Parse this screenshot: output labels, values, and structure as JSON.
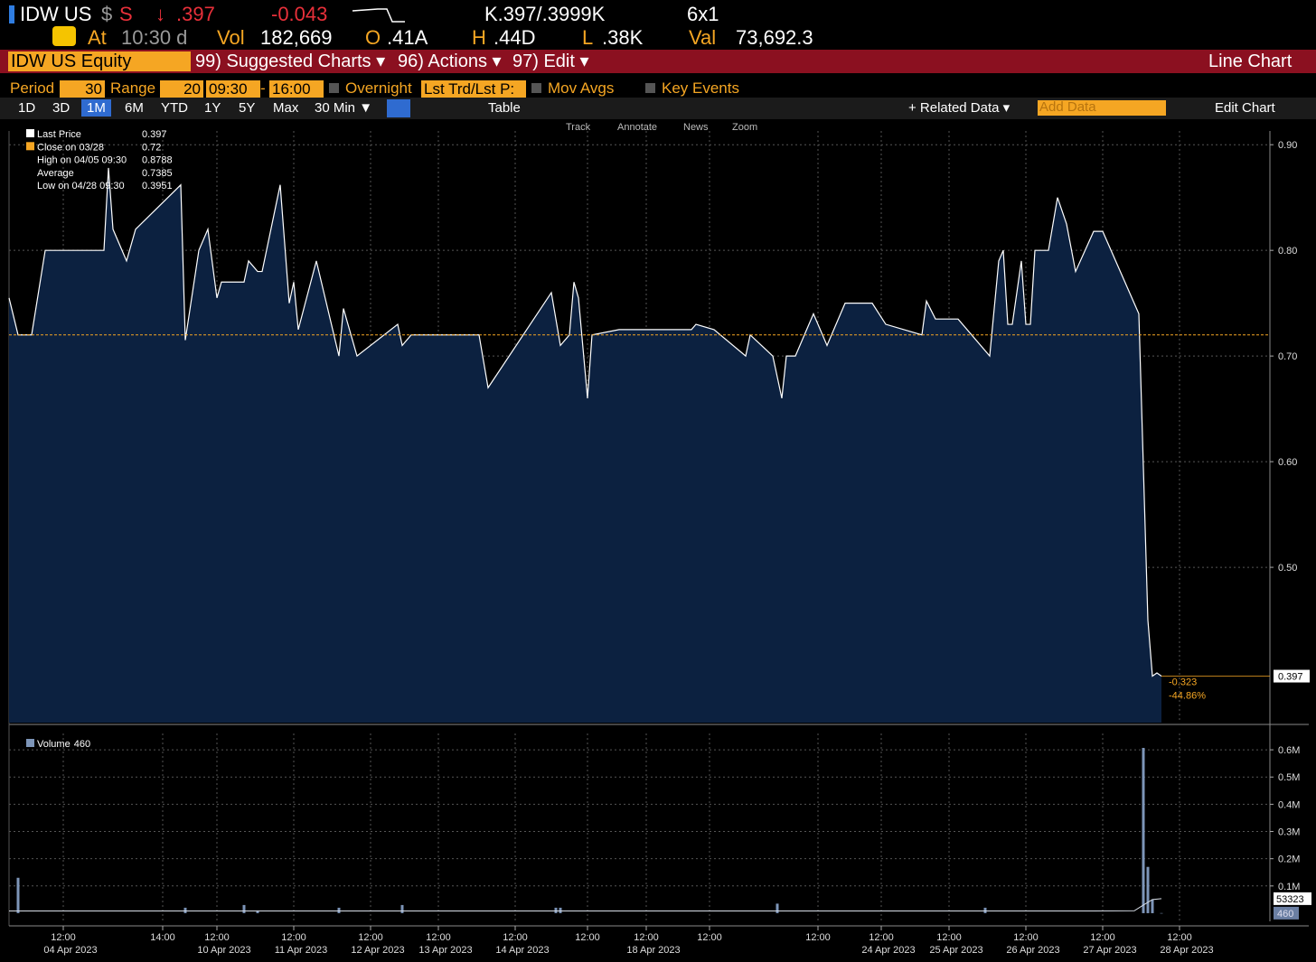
{
  "header": {
    "ticker": "IDW US",
    "currency": "$",
    "flag": "S",
    "direction": "↓",
    "last": ".397",
    "change": "-0.043",
    "quote": "K.397/.3999K",
    "size": "6x1",
    "at_label": "At",
    "time": "10:30 d",
    "vol_label": "Vol",
    "volume": "182,669",
    "open_label": "O",
    "open": ".41A",
    "high_label": "H",
    "high": ".44D",
    "low_label": "L",
    "low": ".38K",
    "val_label": "Val",
    "value": "73,692.3"
  },
  "menu": {
    "security": "IDW US Equity",
    "items": [
      "99) Suggested Charts ▾",
      "96) Actions ▾",
      "97) Edit ▾"
    ],
    "view": "Line Chart"
  },
  "settings": {
    "period_label": "Period",
    "period": "30",
    "range_label": "Range",
    "range": "20",
    "start": "09:30",
    "dash": "-",
    "end": "16:00",
    "overnight": "Overnight",
    "price_field": "Lst Trd/Lst P:",
    "mov_avgs": "Mov Avgs",
    "key_events": "Key Events"
  },
  "toolbar": {
    "ranges": [
      "1D",
      "3D",
      "1M",
      "6M",
      "YTD",
      "1Y",
      "5Y",
      "Max"
    ],
    "active_index": 2,
    "interval": "30 Min ▼",
    "table": "Table",
    "related": "+ Related Data ▾",
    "add_data": "Add Data",
    "edit_chart": "Edit Chart"
  },
  "chart_tools": [
    "Track",
    "Annotate",
    "News",
    "Zoom"
  ],
  "chart_data": [
    {
      "type": "area",
      "series": [
        {
          "name": "Last Price",
          "color": "#ffffff",
          "fill": "#0c2140",
          "x": [
            0,
            2,
            5,
            8,
            11,
            21,
            22,
            23,
            26,
            28,
            38,
            39,
            42,
            44,
            46,
            47,
            52,
            53,
            55,
            56,
            60,
            62,
            63,
            64,
            68,
            73,
            74,
            77,
            86,
            87,
            89,
            104,
            106,
            120,
            122,
            124,
            125,
            126,
            128,
            129,
            135,
            151,
            152,
            156,
            163,
            164,
            169,
            171,
            172,
            174,
            178,
            181,
            185,
            191,
            194,
            202,
            203,
            205,
            210,
            217,
            219,
            220,
            221,
            222,
            224,
            225,
            226,
            227,
            230,
            232,
            234,
            236,
            240,
            242,
            250,
            252,
            253,
            254,
            255
          ],
          "values": [
            0.755,
            0.72,
            0.72,
            0.8,
            0.8,
            0.8,
            0.878,
            0.82,
            0.79,
            0.82,
            0.862,
            0.715,
            0.8,
            0.82,
            0.755,
            0.77,
            0.77,
            0.79,
            0.78,
            0.78,
            0.862,
            0.75,
            0.77,
            0.725,
            0.79,
            0.7,
            0.745,
            0.7,
            0.73,
            0.71,
            0.72,
            0.72,
            0.67,
            0.76,
            0.71,
            0.72,
            0.77,
            0.755,
            0.66,
            0.72,
            0.725,
            0.725,
            0.73,
            0.725,
            0.7,
            0.72,
            0.7,
            0.66,
            0.7,
            0.7,
            0.74,
            0.71,
            0.75,
            0.75,
            0.73,
            0.72,
            0.752,
            0.735,
            0.735,
            0.7,
            0.79,
            0.8,
            0.73,
            0.73,
            0.79,
            0.73,
            0.73,
            0.8,
            0.8,
            0.85,
            0.825,
            0.78,
            0.818,
            0.818,
            0.74,
            0.45,
            0.397,
            0.4,
            0.397
          ]
        }
      ],
      "reference_line": {
        "name": "Close on 03/28",
        "value": 0.72,
        "color": "#f5a623"
      },
      "stats": [
        {
          "label": "High on 04/05 09:30",
          "value": 0.8788
        },
        {
          "label": "Average",
          "value": 0.7385
        },
        {
          "label": "Low on 04/28 09:30",
          "value": 0.3951
        }
      ],
      "change": -0.323,
      "change_pct": {
        "value": -44.86,
        "label": "-44.86%"
      },
      "xlim": [
        0,
        279
      ],
      "ylim": [
        0.353,
        0.913
      ],
      "yticks": [
        {
          "value": 0.5,
          "label": "0.50"
        },
        {
          "value": 0.6,
          "label": "0.60"
        },
        {
          "value": 0.7,
          "label": "0.70"
        },
        {
          "value": 0.8,
          "label": "0.80"
        },
        {
          "value": 0.9,
          "label": "0.90"
        }
      ],
      "grid": true
    },
    {
      "type": "bar",
      "series": [
        {
          "name": "Volume",
          "color": "#7d95b8",
          "x": [
            2,
            39,
            52,
            55,
            73,
            87,
            121,
            122,
            170,
            216,
            251,
            252,
            253,
            255
          ],
          "values": [
            130000,
            20000,
            30000,
            10000,
            20000,
            30000,
            20000,
            20000,
            35000,
            20000,
            607000,
            170000,
            50000,
            460
          ]
        },
        {
          "color": "#d8dee8",
          "x": [
            0,
            60,
            120,
            180,
            240,
            249,
            251,
            253,
            255
          ],
          "values": [
            8000,
            8000,
            8000,
            8000,
            8000,
            9000,
            30000,
            50000,
            53323
          ]
        }
      ],
      "xlim": [
        0,
        279
      ],
      "ylim": [
        -30000,
        660000
      ],
      "yticks": [
        {
          "value": 100000,
          "label": "0.1M"
        },
        {
          "value": 200000,
          "label": "0.2M"
        },
        {
          "value": 300000,
          "label": "0.3M"
        },
        {
          "value": 400000,
          "label": "0.4M"
        },
        {
          "value": 500000,
          "label": "0.5M"
        },
        {
          "value": 600000,
          "label": "0.6M"
        }
      ],
      "xticks": [
        {
          "value": 12,
          "label": "12:00",
          "date": "04 Apr 2023"
        },
        {
          "value": 34,
          "label": "14:00",
          "date": null
        },
        {
          "value": 46,
          "label": "12:00",
          "date": "10 Apr 2023"
        },
        {
          "value": 63,
          "label": "12:00",
          "date": "11 Apr 2023"
        },
        {
          "value": 80,
          "label": "12:00",
          "date": "12 Apr 2023"
        },
        {
          "value": 95,
          "label": "12:00",
          "date": "13 Apr 2023"
        },
        {
          "value": 112,
          "label": "12:00",
          "date": "14 Apr 2023"
        },
        {
          "value": 128,
          "label": "12:00",
          "date": null
        },
        {
          "value": 141,
          "label": "12:00",
          "date": "18 Apr 2023"
        },
        {
          "value": 155,
          "label": "12:00",
          "date": null
        },
        {
          "value": 179,
          "label": "12:00",
          "date": null
        },
        {
          "value": 193,
          "label": "12:00",
          "date": "24 Apr 2023"
        },
        {
          "value": 208,
          "label": "12:00",
          "date": "25 Apr 2023"
        },
        {
          "value": 225,
          "label": "12:00",
          "date": "26 Apr 2023"
        },
        {
          "value": 242,
          "label": "12:00",
          "date": "27 Apr 2023"
        },
        {
          "value": 259,
          "label": "12:00",
          "date": "28 Apr 2023"
        }
      ],
      "grid": true
    }
  ]
}
